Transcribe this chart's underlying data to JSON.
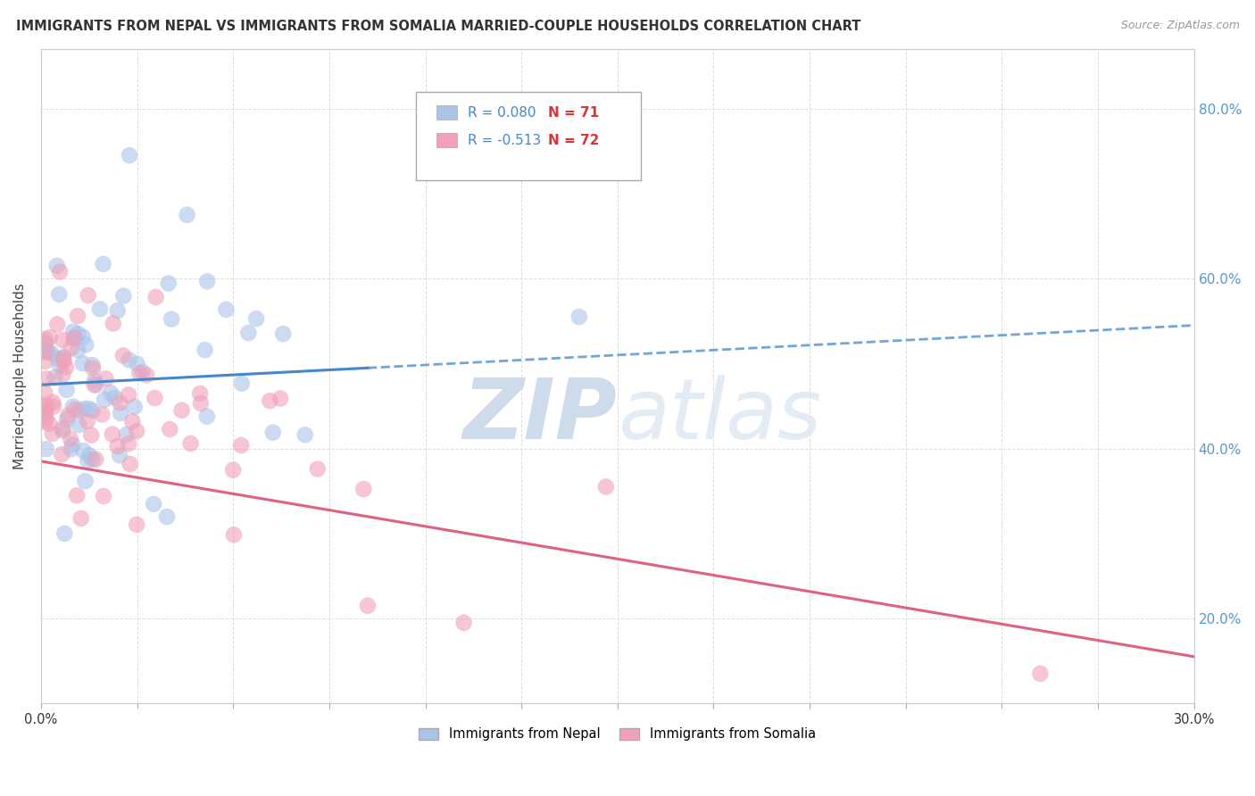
{
  "title": "IMMIGRANTS FROM NEPAL VS IMMIGRANTS FROM SOMALIA MARRIED-COUPLE HOUSEHOLDS CORRELATION CHART",
  "source": "Source: ZipAtlas.com",
  "ylabel": "Married-couple Households",
  "ytick_vals": [
    0.2,
    0.4,
    0.6,
    0.8
  ],
  "xmin": 0.0,
  "xmax": 0.3,
  "ymin": 0.1,
  "ymax": 0.87,
  "nepal_R": 0.08,
  "nepal_N": 71,
  "somalia_R": -0.513,
  "somalia_N": 72,
  "nepal_color": "#aac4e8",
  "somalia_color": "#f0a0b8",
  "nepal_line_color": "#4488cc",
  "somalia_line_color": "#e06080",
  "nepal_line_y0": 0.475,
  "nepal_line_y1": 0.545,
  "nepal_line_solid_end": 0.085,
  "somalia_line_y0": 0.385,
  "somalia_line_y1": 0.155,
  "somalia_line_x0": 0.0,
  "somalia_line_x1": 0.3,
  "legend_R_color": "#4488cc",
  "legend_N_color": "#dd3333",
  "background_color": "#ffffff",
  "grid_color": "#dddddd",
  "title_color": "#333333",
  "watermark_color": "#d0dff0",
  "right_axis_color": "#5599cc"
}
